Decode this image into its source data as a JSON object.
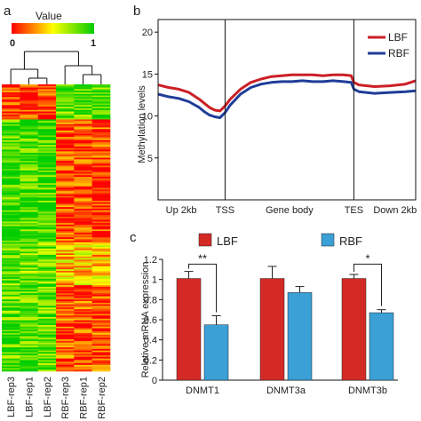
{
  "panels": {
    "a": {
      "label": "a"
    },
    "b": {
      "label": "b"
    },
    "c": {
      "label": "c"
    }
  },
  "chart_data": [
    {
      "type": "heatmap",
      "panel": "a",
      "colorbar": {
        "title": "Value",
        "min_label": "0",
        "max_label": "1",
        "colors": [
          "#ff0000",
          "#ffff00",
          "#00cc00"
        ]
      },
      "columns": [
        "LBF-rep3",
        "LBF-rep1",
        "LBF-rep2",
        "RBF-rep3",
        "RBF-rep1",
        "RBF-rep2"
      ],
      "dendrogram": "LBF and RBF samples cluster into two separate groups",
      "row_count": 180,
      "colors": {
        "low": "#ff0000",
        "mid": "#ffff00",
        "high": "#22cc22"
      }
    },
    {
      "type": "line",
      "panel": "b",
      "ylabel": "Methylation levels",
      "xlabel": "",
      "regions": [
        "Up 2kb",
        "TSS",
        "Gene body",
        "TES",
        "Down 2kb"
      ],
      "boundaries": [
        "TSS",
        "TES"
      ],
      "yticks": [
        5,
        10,
        15,
        20
      ],
      "ylim": [
        0,
        21.5
      ],
      "x_domain": [
        0,
        100
      ],
      "boundary_x": [
        26,
        76
      ],
      "legend_position": "top-right",
      "series": [
        {
          "name": "LBF",
          "color": "#cc1f26",
          "x": [
            0,
            4,
            8,
            12,
            16,
            18,
            20,
            22,
            24,
            26,
            28,
            32,
            36,
            40,
            44,
            48,
            52,
            56,
            60,
            64,
            68,
            72,
            75,
            76,
            78,
            84,
            90,
            96,
            100
          ],
          "values": [
            13.7,
            13.4,
            13.2,
            12.8,
            12.0,
            11.5,
            11.0,
            10.7,
            10.6,
            11.2,
            12.0,
            13.2,
            14.0,
            14.4,
            14.7,
            14.8,
            14.9,
            14.9,
            14.9,
            14.8,
            14.9,
            14.9,
            14.8,
            14.0,
            13.7,
            13.5,
            13.6,
            13.8,
            14.2
          ]
        },
        {
          "name": "RBF",
          "color": "#1f3d99",
          "x": [
            0,
            4,
            8,
            12,
            16,
            18,
            20,
            22,
            24,
            26,
            28,
            32,
            36,
            40,
            44,
            48,
            52,
            56,
            60,
            64,
            68,
            72,
            75,
            76,
            78,
            84,
            90,
            96,
            100
          ],
          "values": [
            12.6,
            12.3,
            12.1,
            11.7,
            11.0,
            10.5,
            10.1,
            9.9,
            9.8,
            10.4,
            11.3,
            12.6,
            13.4,
            13.8,
            14.0,
            14.1,
            14.1,
            14.2,
            14.1,
            14.1,
            14.2,
            14.1,
            14.0,
            13.2,
            12.9,
            12.7,
            12.8,
            12.9,
            13.0
          ]
        }
      ]
    },
    {
      "type": "bar",
      "panel": "c",
      "ylabel": "Relative mRNA expression",
      "xlabel": "",
      "categories": [
        "DNMT1",
        "DNMT3a",
        "DNMT3b"
      ],
      "yticks": [
        "0",
        "0.2",
        "0.4",
        "0.6",
        "0.8",
        "1",
        "1.2"
      ],
      "ylim": [
        0,
        1.2
      ],
      "legend_position": "top",
      "series": [
        {
          "name": "LBF",
          "color": "#d42a26",
          "values": [
            1.01,
            1.01,
            1.01
          ],
          "errors": [
            0.07,
            0.12,
            0.04
          ]
        },
        {
          "name": "RBF",
          "color": "#3aa0d6",
          "values": [
            0.55,
            0.87,
            0.67
          ],
          "errors": [
            0.09,
            0.06,
            0.03
          ]
        }
      ],
      "significance": [
        {
          "category": "DNMT1",
          "label": "**"
        },
        {
          "category": "DNMT3b",
          "label": "*"
        }
      ]
    }
  ]
}
